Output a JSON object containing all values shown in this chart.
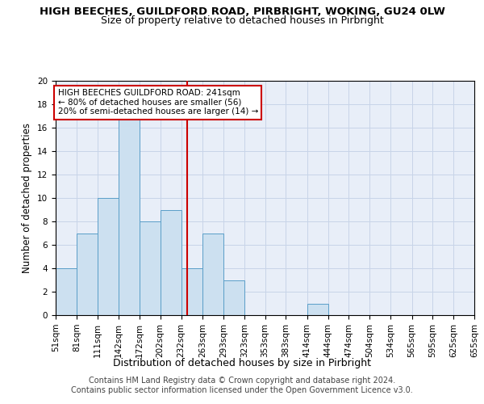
{
  "title_line1": "HIGH BEECHES, GUILDFORD ROAD, PIRBRIGHT, WOKING, GU24 0LW",
  "title_line2": "Size of property relative to detached houses in Pirbright",
  "xlabel": "Distribution of detached houses by size in Pirbright",
  "ylabel": "Number of detached properties",
  "bins": [
    51,
    81,
    111,
    142,
    172,
    202,
    232,
    263,
    293,
    323,
    353,
    383,
    414,
    444,
    474,
    504,
    534,
    565,
    595,
    625,
    655
  ],
  "values": [
    4,
    7,
    10,
    17,
    8,
    9,
    4,
    7,
    3,
    0,
    0,
    0,
    1,
    0,
    0,
    0,
    0,
    0,
    0,
    0
  ],
  "bar_color": "#cce0f0",
  "bar_edge_color": "#5a9ec8",
  "vline_x": 241,
  "vline_color": "#cc0000",
  "annotation_text": "HIGH BEECHES GUILDFORD ROAD: 241sqm\n← 80% of detached houses are smaller (56)\n20% of semi-detached houses are larger (14) →",
  "annotation_box_color": "#ffffff",
  "annotation_box_edge": "#cc0000",
  "ylim": [
    0,
    20
  ],
  "yticks": [
    0,
    2,
    4,
    6,
    8,
    10,
    12,
    14,
    16,
    18,
    20
  ],
  "grid_color": "#c8d4e8",
  "bg_color": "#e8eef8",
  "footer": "Contains HM Land Registry data © Crown copyright and database right 2024.\nContains public sector information licensed under the Open Government Licence v3.0.",
  "title_fontsize": 9.5,
  "subtitle_fontsize": 9,
  "xlabel_fontsize": 9,
  "ylabel_fontsize": 8.5,
  "tick_fontsize": 7.5,
  "annot_fontsize": 7.5,
  "footer_fontsize": 7
}
